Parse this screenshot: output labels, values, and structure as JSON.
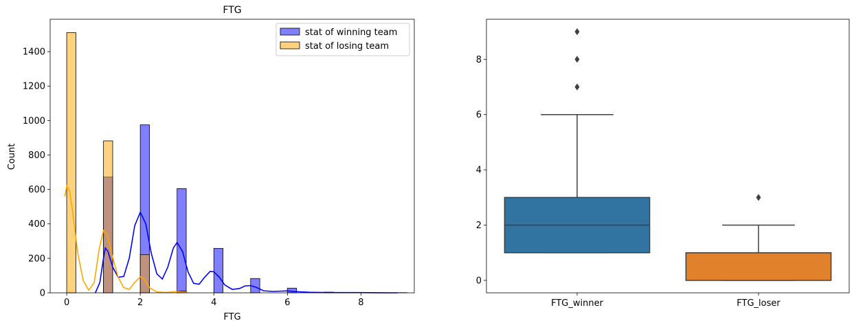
{
  "chart_data": [
    {
      "type": "histogram",
      "title": "FTG",
      "xlabel": "FTG",
      "ylabel": "Count",
      "xlim": [
        -0.45,
        9.45
      ],
      "ylim": [
        0,
        1588
      ],
      "x_ticks": [
        0,
        2,
        4,
        6,
        8
      ],
      "y_ticks": [
        0,
        200,
        400,
        600,
        800,
        1000,
        1200,
        1400
      ],
      "legend": "top-right",
      "bin_width": 0.25,
      "series": [
        {
          "name": "stat of winning team",
          "color": "#0000ff",
          "bars": [
            {
              "x": 1,
              "count": 672
            },
            {
              "x": 2,
              "count": 975
            },
            {
              "x": 3,
              "count": 605
            },
            {
              "x": 4,
              "count": 258
            },
            {
              "x": 5,
              "count": 83
            },
            {
              "x": 6,
              "count": 27
            },
            {
              "x": 7,
              "count": 4
            },
            {
              "x": 8,
              "count": 2
            },
            {
              "x": 9,
              "count": 1
            }
          ],
          "kde": [
            [
              0.78,
              0
            ],
            [
              0.9,
              60
            ],
            [
              1.0,
              200
            ],
            [
              1.05,
              260
            ],
            [
              1.12,
              240
            ],
            [
              1.25,
              150
            ],
            [
              1.4,
              90
            ],
            [
              1.55,
              95
            ],
            [
              1.7,
              200
            ],
            [
              1.85,
              390
            ],
            [
              2.0,
              468
            ],
            [
              2.15,
              400
            ],
            [
              2.3,
              230
            ],
            [
              2.45,
              110
            ],
            [
              2.6,
              80
            ],
            [
              2.75,
              150
            ],
            [
              2.9,
              260
            ],
            [
              3.0,
              292
            ],
            [
              3.15,
              240
            ],
            [
              3.3,
              120
            ],
            [
              3.45,
              55
            ],
            [
              3.6,
              50
            ],
            [
              3.75,
              90
            ],
            [
              3.9,
              125
            ],
            [
              4.0,
              122
            ],
            [
              4.15,
              90
            ],
            [
              4.3,
              45
            ],
            [
              4.5,
              20
            ],
            [
              4.7,
              25
            ],
            [
              4.85,
              40
            ],
            [
              5.0,
              42
            ],
            [
              5.15,
              32
            ],
            [
              5.35,
              12
            ],
            [
              5.6,
              8
            ],
            [
              5.85,
              10
            ],
            [
              6.0,
              11
            ],
            [
              6.2,
              7
            ],
            [
              6.6,
              3
            ],
            [
              7.0,
              2
            ],
            [
              7.5,
              1
            ],
            [
              8.0,
              1
            ],
            [
              8.5,
              0.5
            ],
            [
              9.0,
              0
            ]
          ]
        },
        {
          "name": "stat of losing team",
          "color": "#ffa500",
          "bars": [
            {
              "x": 0,
              "count": 1510
            },
            {
              "x": 1,
              "count": 882
            },
            {
              "x": 2,
              "count": 222
            },
            {
              "x": 3,
              "count": 10
            }
          ],
          "kde": [
            [
              -0.05,
              560
            ],
            [
              0.0,
              620
            ],
            [
              0.08,
              590
            ],
            [
              0.18,
              440
            ],
            [
              0.3,
              230
            ],
            [
              0.45,
              70
            ],
            [
              0.6,
              15
            ],
            [
              0.75,
              60
            ],
            [
              0.88,
              250
            ],
            [
              1.0,
              362
            ],
            [
              1.1,
              340
            ],
            [
              1.22,
              230
            ],
            [
              1.4,
              90
            ],
            [
              1.55,
              30
            ],
            [
              1.7,
              20
            ],
            [
              1.85,
              60
            ],
            [
              2.0,
              93
            ],
            [
              2.1,
              80
            ],
            [
              2.25,
              30
            ],
            [
              2.45,
              5
            ],
            [
              2.7,
              2
            ],
            [
              2.9,
              6
            ],
            [
              3.0,
              7
            ],
            [
              3.1,
              5
            ],
            [
              3.3,
              1
            ]
          ]
        }
      ]
    },
    {
      "type": "box",
      "title": "",
      "xlabel": "",
      "ylabel": "",
      "ylim": [
        -0.45,
        9.45
      ],
      "y_ticks": [
        0,
        2,
        4,
        6,
        8
      ],
      "categories": [
        "FTG_winner",
        "FTG_loser"
      ],
      "boxes": [
        {
          "name": "FTG_winner",
          "color": "#3274a1",
          "min": 1,
          "q1": 1,
          "median": 2,
          "q3": 3,
          "max": 6,
          "outliers": [
            7,
            8,
            9
          ]
        },
        {
          "name": "FTG_loser",
          "color": "#e1812c",
          "min": 0,
          "q1": 0,
          "median": 1,
          "q3": 1,
          "max": 2,
          "outliers": [
            3
          ]
        }
      ]
    }
  ]
}
